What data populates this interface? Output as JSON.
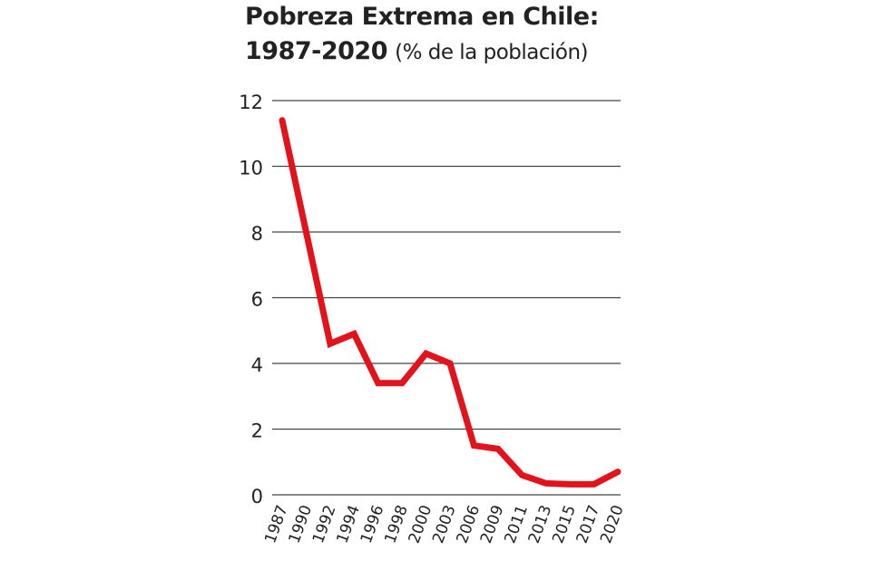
{
  "chart_data": {
    "type": "line",
    "title": "Pobreza Extrema en Chile:",
    "title_line2": "1987-2020",
    "subtitle": "(% de la población)",
    "xlabel": "",
    "ylabel": "",
    "categories": [
      "1987",
      "1990",
      "1992",
      "1994",
      "1996",
      "1998",
      "2000",
      "2003",
      "2006",
      "2009",
      "2011",
      "2013",
      "2015",
      "2017",
      "2020"
    ],
    "values": [
      11.4,
      8.0,
      4.6,
      4.9,
      3.4,
      3.4,
      4.3,
      4.0,
      1.5,
      1.4,
      0.6,
      0.35,
      0.32,
      0.32,
      0.7
    ],
    "ylim": [
      0,
      12
    ],
    "yticks": [
      0,
      2,
      4,
      6,
      8,
      10,
      12
    ],
    "grid": "horizontal",
    "line_color": "#e3131b",
    "grid_color": "#444444"
  }
}
